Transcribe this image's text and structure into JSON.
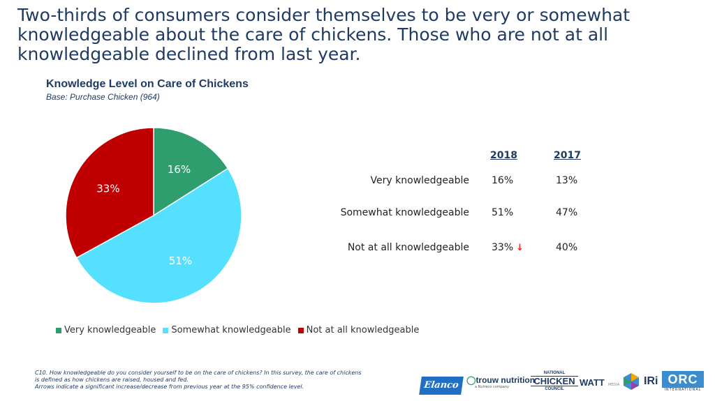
{
  "headline": "Two-thirds of consumers consider themselves to be very or somewhat knowledgeable about the care of chickens.  Those who are not at all knowledgeable declined from last year.",
  "chart_data": {
    "type": "pie",
    "title": "Knowledge Level on Care of Chickens",
    "subtitle": "Base: Purchase Chicken (964)",
    "categories": [
      "Very knowledgeable",
      "Somewhat knowledgeable",
      "Not at all knowledgeable"
    ],
    "values": [
      16,
      51,
      33
    ],
    "labels": [
      "16%",
      "51%",
      "33%"
    ],
    "colors": [
      "#2E9E6F",
      "#55E0FF",
      "#C00000"
    ],
    "legend_position": "bottom"
  },
  "table": {
    "headers": [
      "2018",
      "2017"
    ],
    "rows": [
      {
        "label": "Very knowledgeable",
        "v2018": "16%",
        "v2017": "13%"
      },
      {
        "label": "Somewhat knowledgeable",
        "v2018": "51%",
        "v2017": "47%"
      },
      {
        "label": "Not at all knowledgeable",
        "v2018": "33%",
        "v2017": "40%",
        "arrow": "down"
      }
    ],
    "arrow_glyph": "↓",
    "arrow_color": "#E1251B"
  },
  "footnote": {
    "line1": "C10. How knowledgeable do you consider yourself to be on the care of chickens?  In this survey, the care of chickens",
    "line2": "is defined as how chickens are raised, housed and fed.",
    "line3": "Arrows indicate a significant increase/decrease from previous year at the 95% confidence level."
  },
  "logos": {
    "elanco": "Elanco",
    "trouw": "trouw nutrition",
    "trouw_sub": "a Nutreco company",
    "ncc_top": "NATIONAL",
    "ncc_mid": "CHICKEN",
    "ncc_bot": "COUNCIL",
    "watt": "WATT",
    "watt_media": "MEDIA",
    "iri": "IRi",
    "orc": "ORC",
    "orc_sub": "INTERNATIONAL"
  }
}
